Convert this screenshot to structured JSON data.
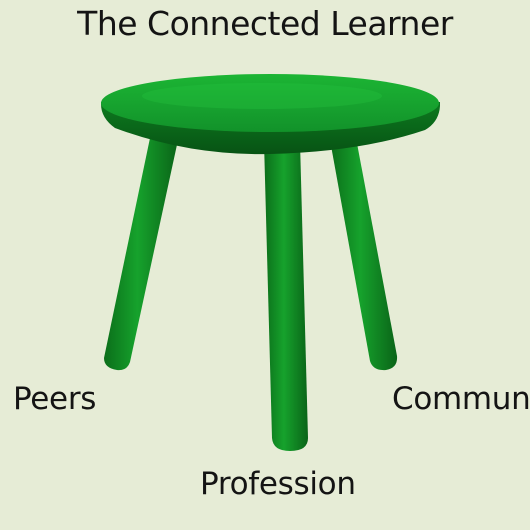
{
  "diagram": {
    "title": "The Connected Learner",
    "legs": {
      "left": "Peers",
      "right": "Commun",
      "center": "Profession"
    },
    "colors": {
      "background": "#e6ecd6",
      "stool_green": "#149a28",
      "text": "#141414"
    }
  }
}
